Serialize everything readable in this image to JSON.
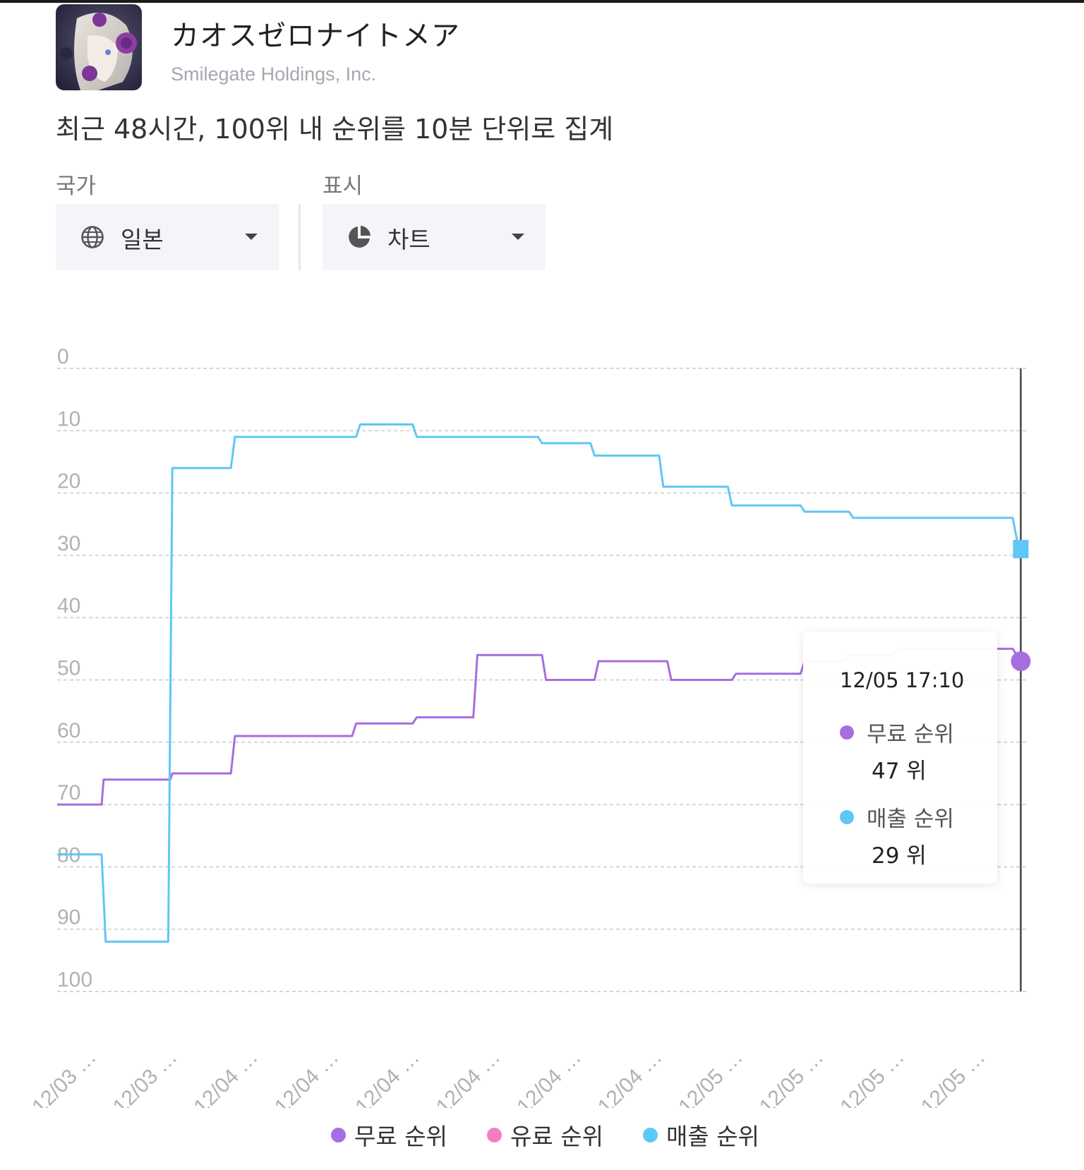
{
  "app": {
    "title": "カオスゼロナイトメア",
    "developer": "Smilegate Holdings, Inc."
  },
  "description": "최근 48시간, 100위 내 순위를 10분 단위로 집계",
  "filters": {
    "country_label": "국가",
    "country_value": "일본",
    "country_icon": "globe-icon",
    "display_label": "표시",
    "display_value": "차트",
    "display_icon": "pie-chart-icon"
  },
  "tooltip": {
    "time": "12/05 17:10",
    "free_name": "무료 순위",
    "free_value": "47 위",
    "sales_name": "매출 순위",
    "sales_value": "29 위"
  },
  "legend": {
    "free": "무료 순위",
    "paid": "유료 순위",
    "sales": "매출 순위"
  },
  "colors": {
    "free": "#a66ee0",
    "paid": "#f47ec4",
    "sales": "#5fc7f5",
    "grid": "#d6d6d6",
    "axis_text": "#b1b1b6",
    "crosshair": "#444444"
  },
  "chart_data": {
    "type": "line",
    "step": true,
    "y_inverted": true,
    "ylim": [
      0,
      100
    ],
    "y_ticks": [
      0,
      10,
      20,
      30,
      40,
      50,
      60,
      70,
      80,
      90,
      100
    ],
    "x_tick_labels": [
      "12/03 …",
      "12/03 …",
      "12/04 …",
      "12/04 …",
      "12/04 …",
      "12/04 …",
      "12/04 …",
      "12/04 …",
      "12/05 …",
      "12/05 …",
      "12/05 …",
      "12/05 …"
    ],
    "x_index_max": 48,
    "grid": true,
    "legend_position": "bottom",
    "series": [
      {
        "name": "무료 순위",
        "color": "#a66ee0",
        "points": [
          [
            0,
            70
          ],
          [
            2.2,
            70
          ],
          [
            2.3,
            66
          ],
          [
            5.6,
            66
          ],
          [
            5.7,
            65
          ],
          [
            8.6,
            65
          ],
          [
            8.8,
            59
          ],
          [
            14.6,
            59
          ],
          [
            14.8,
            57
          ],
          [
            17.6,
            57
          ],
          [
            17.8,
            56
          ],
          [
            20.6,
            56
          ],
          [
            20.8,
            46
          ],
          [
            24.0,
            46
          ],
          [
            24.2,
            50
          ],
          [
            26.6,
            50
          ],
          [
            26.8,
            47
          ],
          [
            30.2,
            47
          ],
          [
            30.4,
            50
          ],
          [
            33.4,
            50
          ],
          [
            33.6,
            49
          ],
          [
            36.8,
            49
          ],
          [
            37.0,
            47
          ],
          [
            39.0,
            47
          ],
          [
            39.2,
            46
          ],
          [
            41.4,
            46
          ],
          [
            41.6,
            45
          ],
          [
            47.3,
            45
          ],
          [
            47.7,
            47
          ]
        ]
      },
      {
        "name": "유료 순위",
        "color": "#f47ec4",
        "points": []
      },
      {
        "name": "매출 순위",
        "color": "#5fc7f5",
        "points": [
          [
            0,
            78
          ],
          [
            2.2,
            78
          ],
          [
            2.4,
            92
          ],
          [
            5.5,
            92
          ],
          [
            5.7,
            16
          ],
          [
            8.6,
            16
          ],
          [
            8.8,
            11
          ],
          [
            14.8,
            11
          ],
          [
            15.0,
            9
          ],
          [
            17.6,
            9
          ],
          [
            17.8,
            11
          ],
          [
            23.8,
            11
          ],
          [
            24.0,
            12
          ],
          [
            26.4,
            12
          ],
          [
            26.6,
            14
          ],
          [
            29.8,
            14
          ],
          [
            30.0,
            19
          ],
          [
            33.2,
            19
          ],
          [
            33.4,
            22
          ],
          [
            36.8,
            22
          ],
          [
            37.0,
            23
          ],
          [
            39.2,
            23
          ],
          [
            39.4,
            24
          ],
          [
            47.3,
            24
          ],
          [
            47.6,
            29
          ]
        ]
      }
    ],
    "highlight": {
      "x": 47.7,
      "free": 47,
      "sales": 29
    }
  }
}
